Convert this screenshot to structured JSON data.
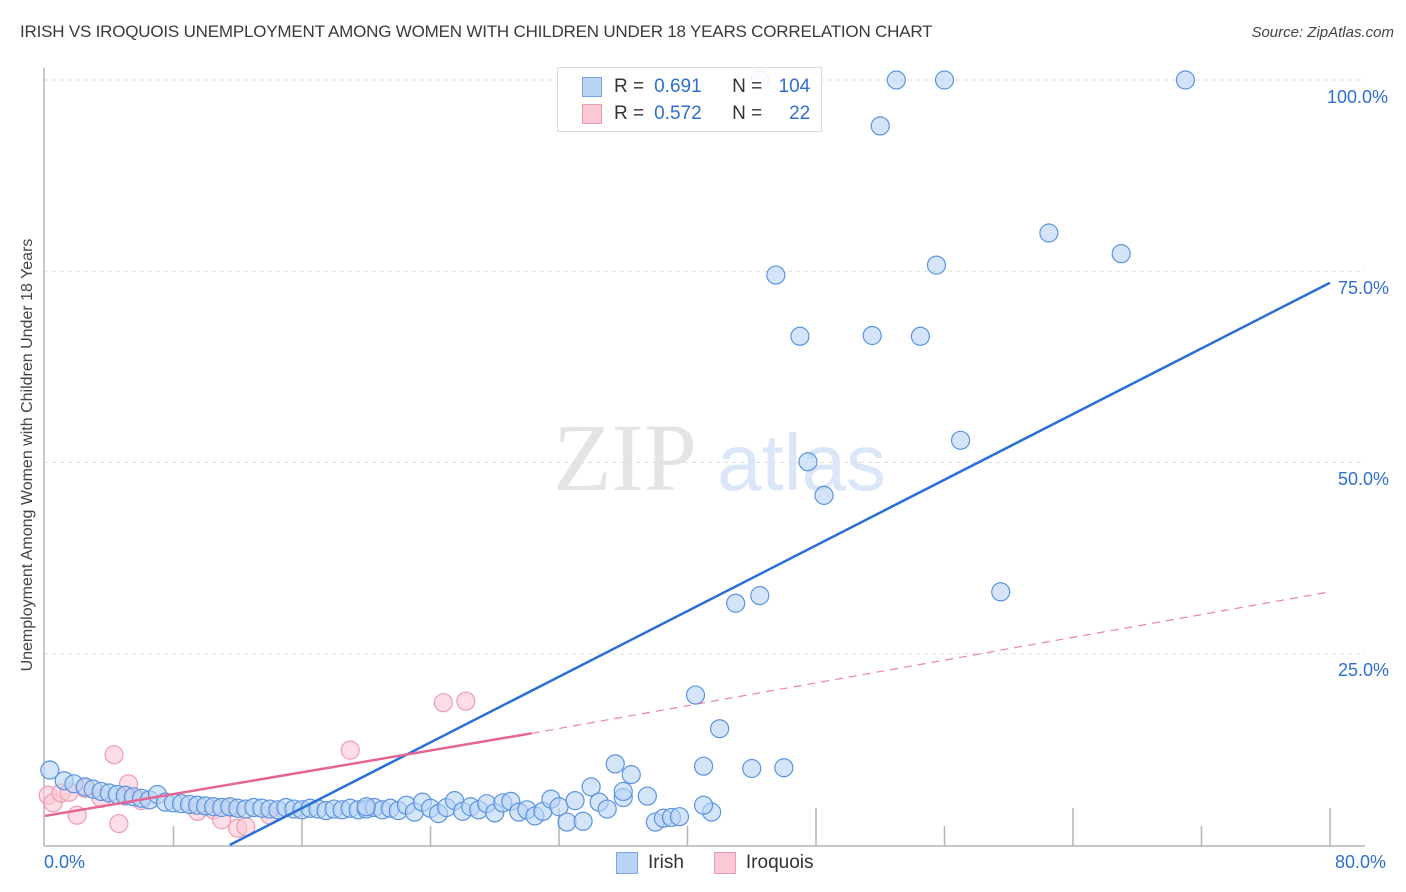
{
  "title": "IRISH VS IROQUOIS UNEMPLOYMENT AMONG WOMEN WITH CHILDREN UNDER 18 YEARS CORRELATION CHART",
  "source": "Source: ZipAtlas.com",
  "watermark": {
    "zip": "ZIP",
    "atlas": "atlas"
  },
  "legend": {
    "rows": [
      {
        "series": "Irish",
        "r_label": "R =",
        "r_value": "0.691",
        "n_label": "N =",
        "n_value": "104",
        "color": "#b9d3f5"
      },
      {
        "series": "Iroquois",
        "r_label": "R =",
        "r_value": "0.572",
        "n_label": "N =",
        "n_value": "22",
        "color": "#fbc8d6"
      }
    ]
  },
  "bottom_legend": [
    {
      "label": "Irish",
      "color": "#b9d3f5"
    },
    {
      "label": "Iroquois",
      "color": "#fbc8d6"
    }
  ],
  "axes": {
    "x_min_label": "0.0%",
    "x_max_label": "80.0%",
    "y_ticks": [
      "100.0%",
      "75.0%",
      "50.0%",
      "25.0%"
    ],
    "ylabel": "Unemployment Among Women with Children Under 18 Years"
  },
  "colors": {
    "irish_fill": "#b9d3f5",
    "irish_stroke": "#5b93e0",
    "irish_line": "#2a6fd6",
    "iroquois_fill": "#fbc8d6",
    "iroquois_stroke": "#ee9ab2",
    "iroquois_line": "#e4658f",
    "tick_text": "#2f6fd0"
  },
  "chart_data": {
    "type": "scatter",
    "title": "IRISH VS IROQUOIS UNEMPLOYMENT AMONG WOMEN WITH CHILDREN UNDER 18 YEARS CORRELATION CHART",
    "xlabel": "",
    "ylabel": "Unemployment Among Women with Children Under 18 Years",
    "xlim": [
      0,
      80
    ],
    "ylim": [
      0,
      100
    ],
    "x_ticks": [
      "0.0%",
      "80.0%"
    ],
    "y_ticks": [
      "25.0%",
      "50.0%",
      "75.0%",
      "100.0%"
    ],
    "grid": true,
    "legend_position": "bottom",
    "series": [
      {
        "name": "Irish",
        "R": 0.691,
        "N": 104,
        "trendline": {
          "x": [
            11.5,
            80
          ],
          "y": [
            0,
            73.5
          ]
        },
        "points": [
          [
            0.3,
            9.8
          ],
          [
            1.2,
            8.4
          ],
          [
            1.8,
            8.0
          ],
          [
            2.5,
            7.6
          ],
          [
            3.0,
            7.3
          ],
          [
            3.5,
            7.0
          ],
          [
            4.0,
            6.8
          ],
          [
            4.5,
            6.6
          ],
          [
            5.0,
            6.5
          ],
          [
            5.5,
            6.3
          ],
          [
            6.0,
            6.1
          ],
          [
            6.5,
            5.9
          ],
          [
            7.0,
            6.6
          ],
          [
            7.5,
            5.6
          ],
          [
            8.0,
            5.5
          ],
          [
            8.5,
            5.4
          ],
          [
            9.0,
            5.3
          ],
          [
            9.5,
            5.2
          ],
          [
            10.0,
            5.1
          ],
          [
            10.5,
            5.0
          ],
          [
            11.0,
            4.9
          ],
          [
            11.5,
            5.0
          ],
          [
            12.0,
            4.8
          ],
          [
            12.5,
            4.7
          ],
          [
            13.0,
            4.9
          ],
          [
            13.5,
            4.8
          ],
          [
            14.0,
            4.7
          ],
          [
            14.5,
            4.6
          ],
          [
            15.0,
            4.9
          ],
          [
            15.5,
            4.7
          ],
          [
            16.0,
            4.6
          ],
          [
            16.5,
            4.8
          ],
          [
            17.0,
            4.7
          ],
          [
            17.5,
            4.5
          ],
          [
            18.0,
            4.7
          ],
          [
            18.5,
            4.6
          ],
          [
            19.0,
            4.8
          ],
          [
            19.5,
            4.6
          ],
          [
            20.0,
            4.7
          ],
          [
            20.5,
            4.9
          ],
          [
            21.0,
            4.6
          ],
          [
            21.5,
            4.8
          ],
          [
            22.0,
            4.5
          ],
          [
            22.5,
            5.2
          ],
          [
            23.0,
            4.3
          ],
          [
            23.5,
            5.6
          ],
          [
            24.0,
            4.8
          ],
          [
            24.5,
            4.1
          ],
          [
            25.0,
            4.9
          ],
          [
            25.5,
            5.8
          ],
          [
            26.0,
            4.4
          ],
          [
            26.5,
            5.0
          ],
          [
            27.0,
            4.6
          ],
          [
            27.5,
            5.4
          ],
          [
            28.0,
            4.2
          ],
          [
            28.5,
            5.5
          ],
          [
            29.0,
            5.7
          ],
          [
            29.5,
            4.3
          ],
          [
            30.0,
            4.6
          ],
          [
            30.5,
            3.8
          ],
          [
            31.0,
            4.4
          ],
          [
            31.5,
            6.0
          ],
          [
            32.0,
            5.0
          ],
          [
            32.5,
            3.0
          ],
          [
            33.0,
            5.8
          ],
          [
            33.5,
            3.1
          ],
          [
            34.0,
            7.6
          ],
          [
            34.5,
            5.6
          ],
          [
            35.0,
            4.7
          ],
          [
            35.5,
            10.6
          ],
          [
            36.0,
            6.2
          ],
          [
            36.5,
            9.2
          ],
          [
            37.5,
            6.4
          ],
          [
            38.0,
            3.0
          ],
          [
            38.5,
            3.5
          ],
          [
            39.0,
            3.6
          ],
          [
            39.5,
            3.7
          ],
          [
            40.5,
            19.6
          ],
          [
            41.0,
            10.3
          ],
          [
            41.5,
            4.3
          ],
          [
            42.0,
            15.2
          ],
          [
            43.0,
            31.6
          ],
          [
            44.0,
            10.0
          ],
          [
            44.5,
            32.6
          ],
          [
            45.5,
            74.5
          ],
          [
            46.0,
            10.1
          ],
          [
            47.0,
            66.5
          ],
          [
            47.5,
            50.1
          ],
          [
            48.5,
            45.7
          ],
          [
            51.5,
            66.6
          ],
          [
            52.0,
            94.0
          ],
          [
            53.0,
            100.0
          ],
          [
            54.5,
            66.5
          ],
          [
            55.5,
            75.8
          ],
          [
            56.0,
            100.0
          ],
          [
            57.0,
            52.9
          ],
          [
            59.5,
            33.1
          ],
          [
            62.5,
            80.0
          ],
          [
            67.0,
            77.3
          ],
          [
            71.0,
            100.0
          ],
          [
            44.5,
            100.0
          ],
          [
            36.0,
            7.0
          ],
          [
            41.0,
            5.2
          ],
          [
            20.0,
            5.0
          ]
        ]
      },
      {
        "name": "Iroquois",
        "R": 0.572,
        "N": 22,
        "trendline_solid": {
          "x": [
            0,
            30.3
          ],
          "y": [
            3.8,
            14.6
          ]
        },
        "trendline_dashed": {
          "x": [
            30.3,
            80
          ],
          "y": [
            14.6,
            33.1
          ]
        },
        "points": [
          [
            0.2,
            6.5
          ],
          [
            0.5,
            5.5
          ],
          [
            1.0,
            6.8
          ],
          [
            1.5,
            6.9
          ],
          [
            2.0,
            3.9
          ],
          [
            2.5,
            7.4
          ],
          [
            3.5,
            6.1
          ],
          [
            4.3,
            11.8
          ],
          [
            4.6,
            2.8
          ],
          [
            5.0,
            6.4
          ],
          [
            5.2,
            8.0
          ],
          [
            6.0,
            5.8
          ],
          [
            9.5,
            4.4
          ],
          [
            10.5,
            4.6
          ],
          [
            11.0,
            3.3
          ],
          [
            11.6,
            4.9
          ],
          [
            12.0,
            2.2
          ],
          [
            12.5,
            2.4
          ],
          [
            14.0,
            3.9
          ],
          [
            19.0,
            12.4
          ],
          [
            24.8,
            18.6
          ],
          [
            26.2,
            18.8
          ]
        ]
      }
    ]
  }
}
